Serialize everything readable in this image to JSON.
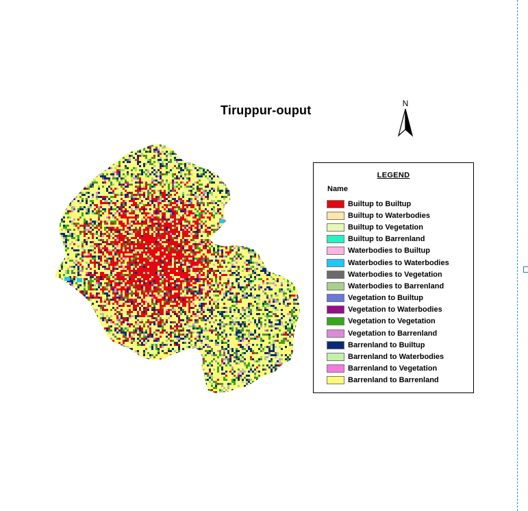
{
  "map": {
    "title": "Tiruppur-ouput",
    "north_label": "N"
  },
  "legend": {
    "title": "LEGEND",
    "field_label": "Name",
    "items": [
      {
        "label": "Builtup to Builtup",
        "color": "#e30613"
      },
      {
        "label": "Builtup to Waterbodies",
        "color": "#ffe6a8"
      },
      {
        "label": "Builtup to Vegetation",
        "color": "#e8f7b4"
      },
      {
        "label": "Builtup to Barrenland",
        "color": "#28f0c0"
      },
      {
        "label": "Waterbodies to Builtup",
        "color": "#f7b6e0"
      },
      {
        "label": "Waterbodies to Waterbodies",
        "color": "#1ec8f5"
      },
      {
        "label": "Waterbodies to Vegetation",
        "color": "#6b6b6b"
      },
      {
        "label": "Waterbodies to Barrenland",
        "color": "#a8d08d"
      },
      {
        "label": "Vegetation to Builtup",
        "color": "#6a78d4"
      },
      {
        "label": "Vegetation to Waterbodies",
        "color": "#9a0a8a"
      },
      {
        "label": "Vegetation to Vegetation",
        "color": "#38a818"
      },
      {
        "label": "Vegetation to Barrenland",
        "color": "#dc8ad8"
      },
      {
        "label": "Barrenland to Builtup",
        "color": "#0a2a78"
      },
      {
        "label": "Barrenland to Waterbodies",
        "color": "#c4f0a8"
      },
      {
        "label": "Barrenland to Vegetation",
        "color": "#f57ae0"
      },
      {
        "label": "Barrenland to Barrenland",
        "color": "#fdfa78"
      }
    ]
  }
}
